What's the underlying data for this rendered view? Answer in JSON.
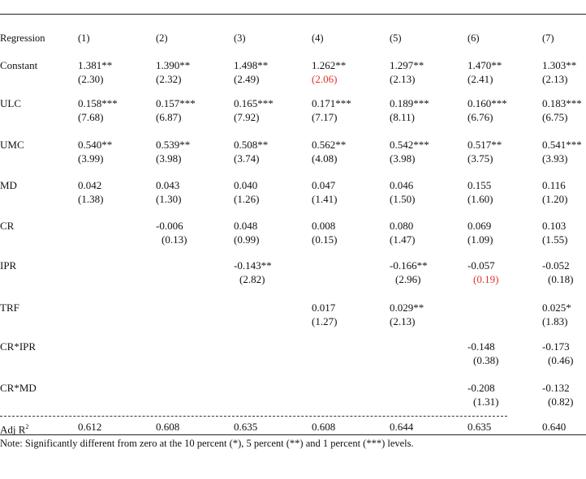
{
  "colors": {
    "highlight": "#e0322b",
    "text": "#111111"
  },
  "header": {
    "row_label": "Regression",
    "columns": [
      "(1)",
      "(2)",
      "(3)",
      "(4)",
      "(5)",
      "(6)",
      "(7)"
    ]
  },
  "rows": [
    {
      "label": "Constant",
      "coef": [
        "1.381**",
        "1.390**",
        "1.498**",
        "1.262**",
        "1.297**",
        "1.470**",
        "1.303**"
      ],
      "tstat": [
        "(2.30)",
        "(2.32)",
        "(2.49)",
        "(2.06)",
        "(2.13)",
        "(2.41)",
        "(2.13)"
      ],
      "tstat_highlight": [
        3
      ]
    },
    {
      "label": "ULC",
      "coef": [
        "0.158***",
        "0.157***",
        "0.165***",
        "0.171***",
        "0.189***",
        "0.160***",
        "0.183***"
      ],
      "tstat": [
        "(7.68)",
        "(6.87)",
        "(7.92)",
        "(7.17)",
        "(8.11)",
        "(6.76)",
        "(6.75)"
      ]
    },
    {
      "label": "UMC",
      "coef": [
        "0.540**",
        "0.539**",
        "0.508**",
        "0.562**",
        "0.542***",
        "0.517**",
        "0.541***"
      ],
      "tstat": [
        "(3.99)",
        "(3.98)",
        "(3.74)",
        "(4.08)",
        "(3.98)",
        "(3.75)",
        "(3.93)"
      ]
    },
    {
      "label": "MD",
      "coef": [
        "0.042",
        "0.043",
        "0.040",
        "0.047",
        "0.046",
        "0.155",
        "0.116"
      ],
      "tstat": [
        "(1.38)",
        "(1.30)",
        "(1.26)",
        "(1.41)",
        "(1.50)",
        "(1.60)",
        "(1.20)"
      ]
    },
    {
      "label": "CR",
      "coef": [
        "",
        "-0.006",
        "0.048",
        "0.008",
        "0.080",
        "0.069",
        "0.103"
      ],
      "tstat": [
        "",
        "(0.13)",
        "(0.99)",
        "(0.15)",
        "(1.47)",
        "(1.09)",
        "(1.55)"
      ]
    },
    {
      "label": "IPR",
      "coef": [
        "",
        "",
        "-0.143**",
        "",
        "-0.166**",
        "-0.057",
        "-0.052"
      ],
      "tstat": [
        "",
        "",
        "(2.82)",
        "",
        "(2.96)",
        "(0.19)",
        "(0.18)"
      ],
      "tstat_highlight": [
        5
      ]
    },
    {
      "label": "TRF",
      "coef": [
        "",
        "",
        "",
        "0.017",
        "0.029**",
        "",
        "0.025*"
      ],
      "tstat": [
        "",
        "",
        "",
        "(1.27)",
        "(2.13)",
        "",
        "(1.83)"
      ]
    },
    {
      "label": "CR*IPR",
      "coef": [
        "",
        "",
        "",
        "",
        "",
        "-0.148",
        "-0.173"
      ],
      "tstat": [
        "",
        "",
        "",
        "",
        "",
        "(0.38)",
        "(0.46)"
      ]
    },
    {
      "label": "CR*MD",
      "coef": [
        "",
        "",
        "",
        "",
        "",
        "-0.208",
        "-0.132"
      ],
      "tstat": [
        "",
        "",
        "",
        "",
        "",
        "(1.31)",
        "(0.82)"
      ]
    }
  ],
  "adj_r2": {
    "label": "Adj R",
    "superscript": "2",
    "values": [
      "0.612",
      "0.608",
      "0.635",
      "0.608",
      "0.644",
      "0.635",
      "0.640"
    ]
  },
  "note": "Note:  Significantly different from zero at the 10 percent (*), 5 percent (**) and 1 percent (***) levels."
}
